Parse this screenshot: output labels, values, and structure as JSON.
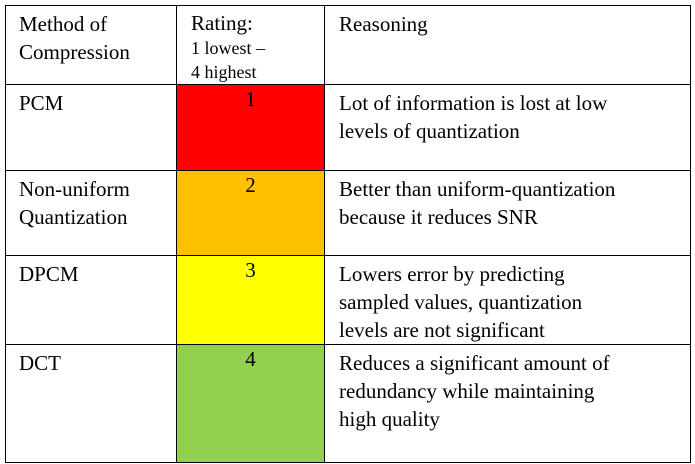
{
  "table": {
    "header": {
      "method": "Method of\nCompression",
      "rating_title": "Rating:",
      "rating_sub": "1 lowest –\n4 highest",
      "reasoning": "Reasoning"
    },
    "rows": [
      {
        "method": "PCM",
        "rating": "1",
        "rating_color": "#ff0000",
        "reasoning": "Lot of information is lost at low\nlevels of quantization"
      },
      {
        "method": "Non-uniform\nQuantization",
        "rating": "2",
        "rating_color": "#ffc000",
        "reasoning": "Better than uniform-quantization\nbecause it reduces SNR"
      },
      {
        "method": "DPCM",
        "rating": "3",
        "rating_color": "#ffff00",
        "reasoning": "Lowers error by predicting\nsampled values, quantization\nlevels are not significant"
      },
      {
        "method": "DCT",
        "rating": "4",
        "rating_color": "#92d050",
        "reasoning": "Reduces a significant amount of\nredundancy while maintaining\nhigh quality"
      }
    ]
  }
}
